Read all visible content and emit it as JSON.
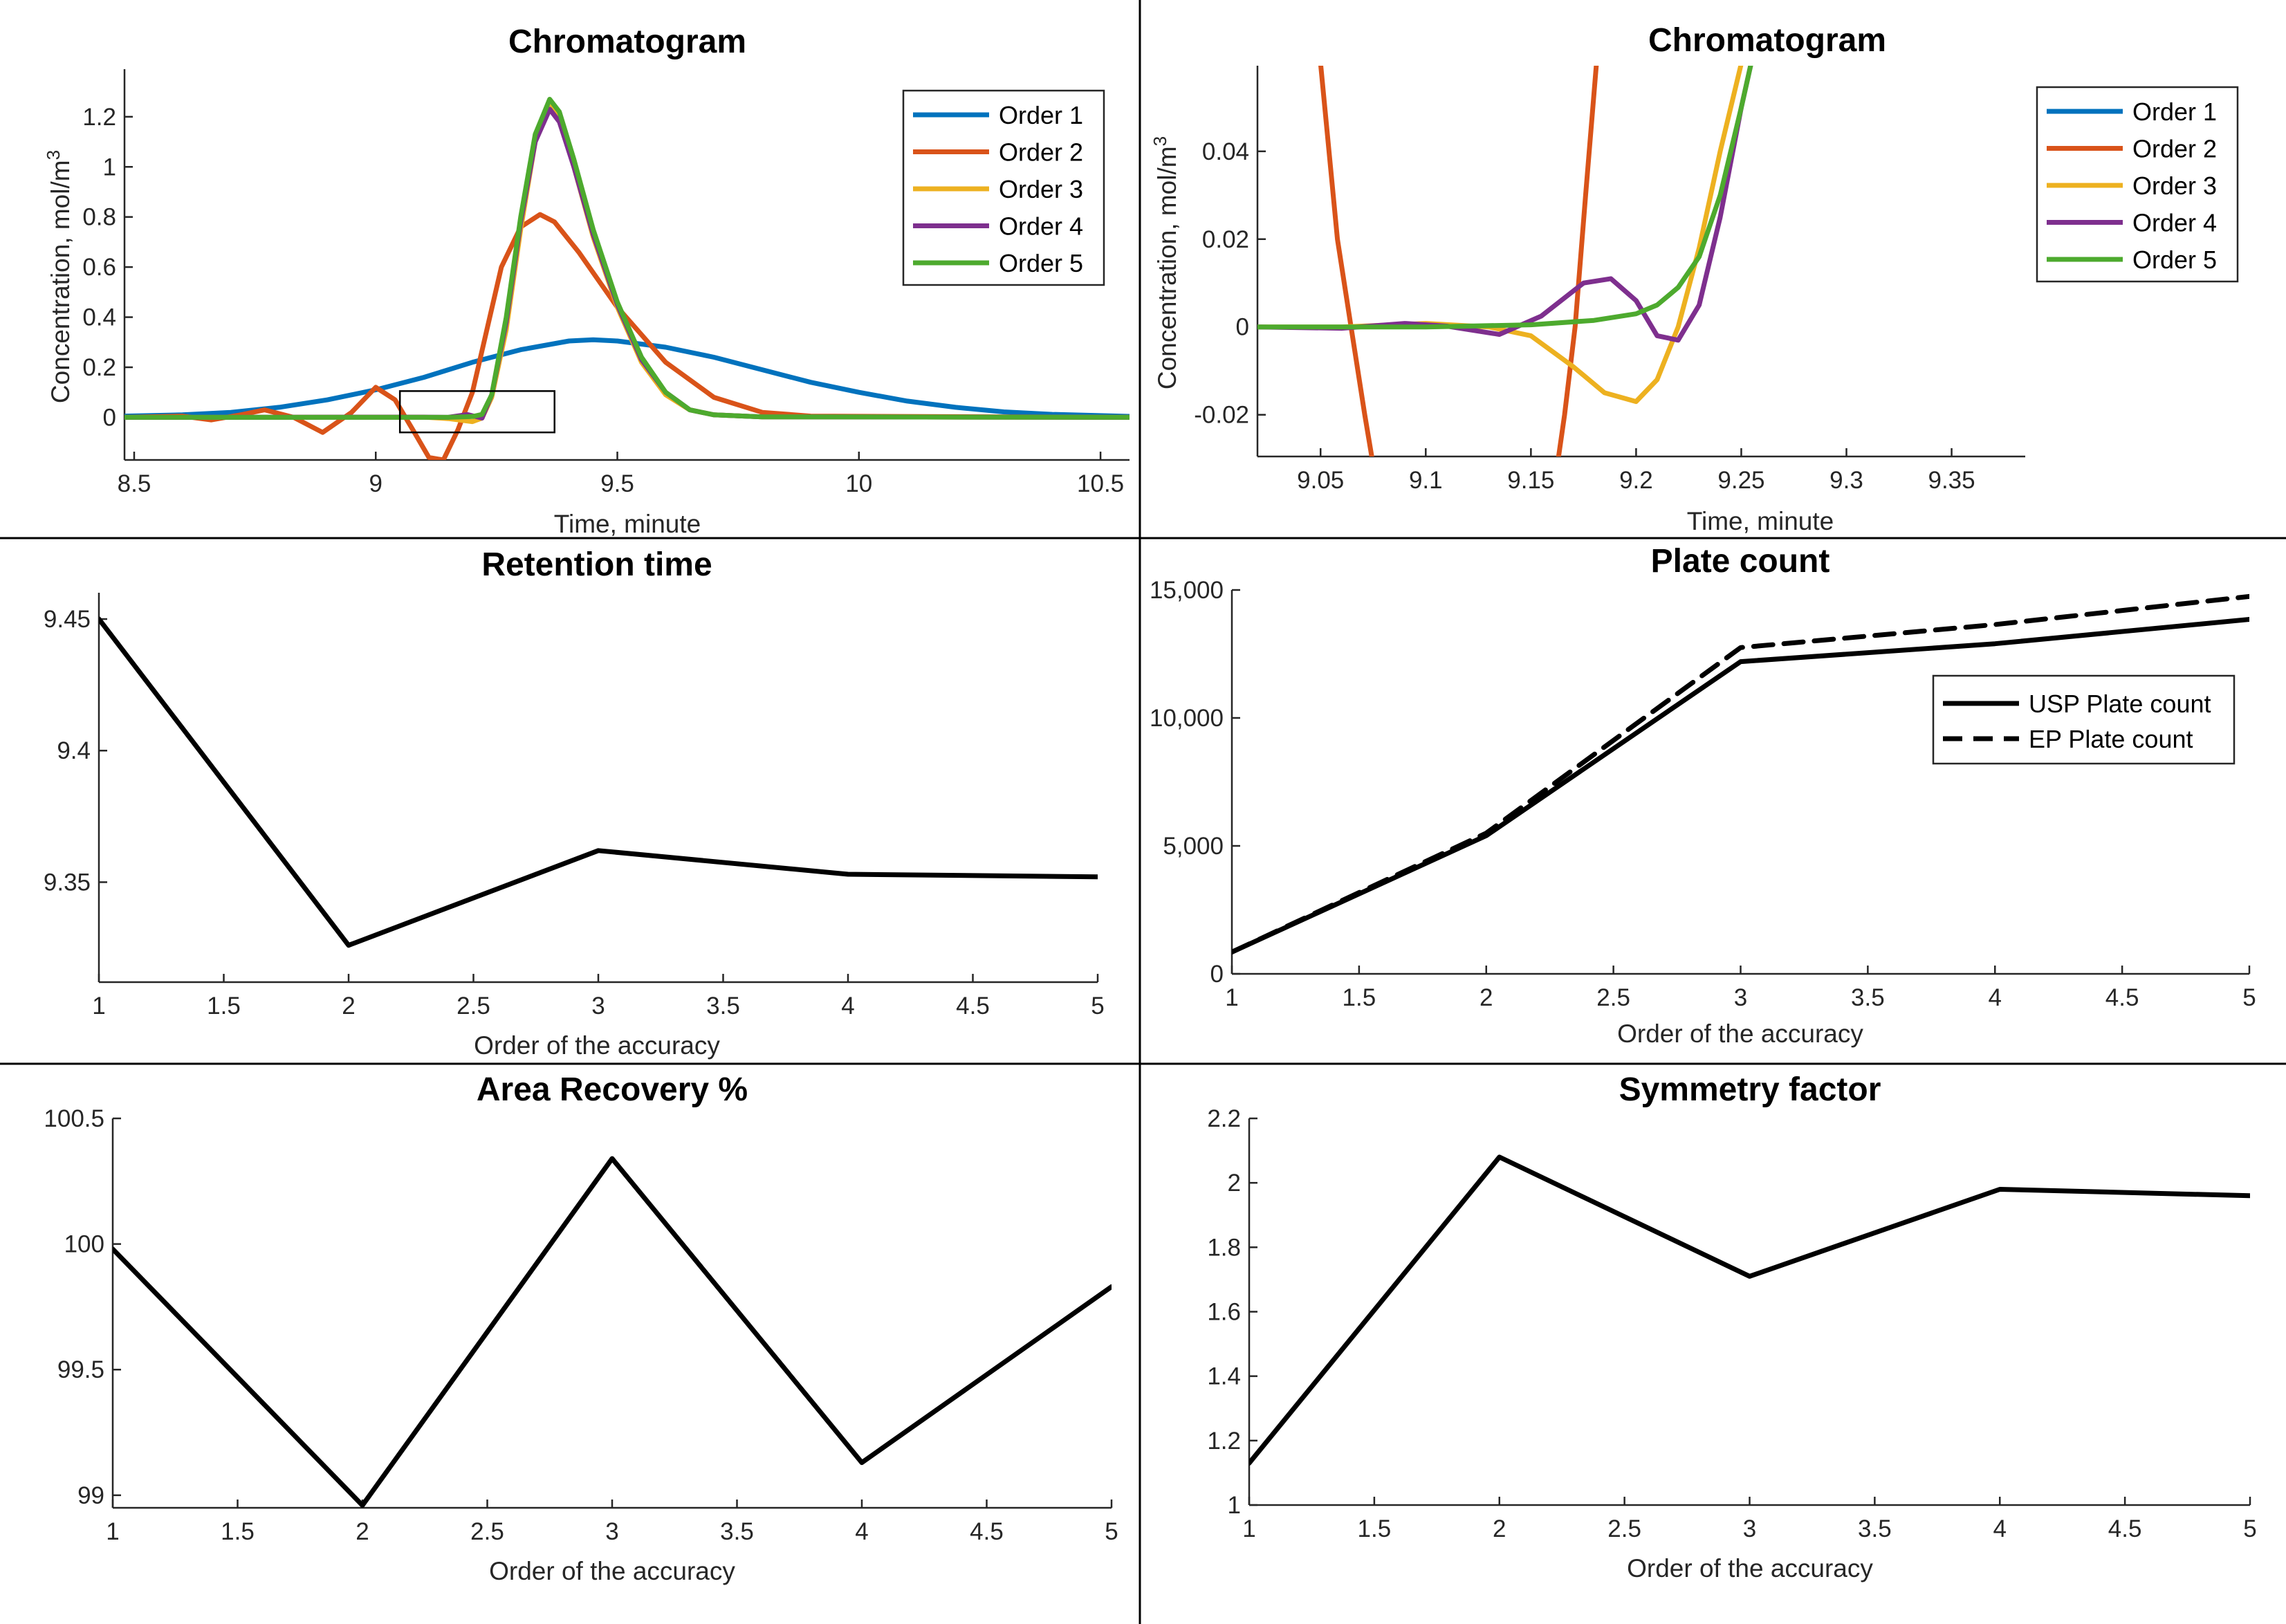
{
  "colors": {
    "order1": "#0072BD",
    "order2": "#D95319",
    "order3": "#EDB120",
    "order4": "#7E2F8E",
    "order5": "#4DAA2E",
    "black": "#000000"
  },
  "chart_data": [
    {
      "id": "chromatogram-main",
      "type": "line",
      "title": "Chromatogram",
      "xlabel": "Time, minute",
      "ylabel": "Concentration, mol/m",
      "ylabel_sup": "3",
      "xlim": [
        8.48,
        10.56
      ],
      "ylim": [
        -0.17,
        1.39
      ],
      "xticks": [
        8.5,
        9,
        9.5,
        10,
        10.5
      ],
      "xtick_labels": [
        "8.5",
        "9",
        "9.5",
        "10",
        "10.5"
      ],
      "yticks": [
        0,
        0.2,
        0.4,
        0.6,
        0.8,
        1,
        1.2
      ],
      "ytick_labels": [
        "0",
        "0.2",
        "0.4",
        "0.6",
        "0.8",
        "1",
        "1.2"
      ],
      "legend_loc": "top-right",
      "zoom_rect": {
        "x": [
          9.05,
          9.37
        ],
        "y": [
          -0.06,
          0.105
        ]
      },
      "series": [
        {
          "name": "Order 1",
          "color_key": "order1",
          "style": "solid",
          "x": [
            8.48,
            8.6,
            8.7,
            8.8,
            8.9,
            9.0,
            9.1,
            9.2,
            9.3,
            9.4,
            9.45,
            9.5,
            9.6,
            9.7,
            9.8,
            9.9,
            10.0,
            10.1,
            10.2,
            10.3,
            10.4,
            10.56
          ],
          "y": [
            0.005,
            0.01,
            0.02,
            0.04,
            0.07,
            0.11,
            0.16,
            0.22,
            0.27,
            0.305,
            0.31,
            0.305,
            0.28,
            0.24,
            0.19,
            0.14,
            0.1,
            0.065,
            0.04,
            0.022,
            0.012,
            0.004
          ]
        },
        {
          "name": "Order 2",
          "color_key": "order2",
          "style": "solid",
          "x": [
            8.48,
            8.6,
            8.66,
            8.72,
            8.77,
            8.83,
            8.89,
            8.95,
            9.0,
            9.04,
            9.08,
            9.11,
            9.14,
            9.17,
            9.2,
            9.23,
            9.26,
            9.3,
            9.34,
            9.37,
            9.42,
            9.5,
            9.6,
            9.7,
            9.8,
            9.9,
            10.56
          ],
          "y": [
            0,
            0.005,
            -0.01,
            0.01,
            0.03,
            0.0,
            -0.06,
            0.02,
            0.12,
            0.07,
            -0.06,
            -0.16,
            -0.17,
            -0.05,
            0.1,
            0.35,
            0.6,
            0.76,
            0.81,
            0.78,
            0.66,
            0.44,
            0.22,
            0.08,
            0.02,
            0.005,
            0
          ]
        },
        {
          "name": "Order 3",
          "color_key": "order3",
          "style": "solid",
          "x": [
            8.48,
            9.1,
            9.15,
            9.2,
            9.22,
            9.24,
            9.27,
            9.3,
            9.33,
            9.36,
            9.38,
            9.41,
            9.45,
            9.5,
            9.55,
            9.6,
            9.65,
            9.7,
            9.8,
            10.56
          ],
          "y": [
            0,
            0.001,
            -0.005,
            -0.017,
            -0.003,
            0.08,
            0.35,
            0.75,
            1.1,
            1.24,
            1.2,
            1.0,
            0.72,
            0.44,
            0.22,
            0.09,
            0.03,
            0.01,
            0.002,
            0
          ]
        },
        {
          "name": "Order 4",
          "color_key": "order4",
          "style": "solid",
          "x": [
            8.48,
            9.1,
            9.15,
            9.19,
            9.22,
            9.24,
            9.27,
            9.3,
            9.33,
            9.36,
            9.38,
            9.41,
            9.45,
            9.5,
            9.55,
            9.6,
            9.65,
            9.7,
            9.8,
            10.56
          ],
          "y": [
            0,
            0.001,
            0.0,
            0.011,
            -0.003,
            0.09,
            0.38,
            0.78,
            1.1,
            1.23,
            1.18,
            1.0,
            0.73,
            0.45,
            0.23,
            0.1,
            0.03,
            0.01,
            0.002,
            0
          ]
        },
        {
          "name": "Order 5",
          "color_key": "order5",
          "style": "solid",
          "x": [
            8.48,
            9.1,
            9.15,
            9.2,
            9.22,
            9.24,
            9.27,
            9.3,
            9.33,
            9.36,
            9.38,
            9.41,
            9.45,
            9.5,
            9.55,
            9.6,
            9.65,
            9.7,
            9.8,
            10.56
          ],
          "y": [
            0,
            0.0,
            0.0,
            0.003,
            0.012,
            0.09,
            0.4,
            0.8,
            1.13,
            1.27,
            1.22,
            1.03,
            0.75,
            0.46,
            0.24,
            0.1,
            0.03,
            0.01,
            0.002,
            0
          ]
        }
      ]
    },
    {
      "id": "chromatogram-zoom",
      "type": "line",
      "title": "Chromatogram",
      "xlabel": "Time, minute",
      "ylabel": "Concentration, mol/m",
      "ylabel_sup": "3",
      "xlim": [
        9.02,
        9.385
      ],
      "ylim": [
        -0.0295,
        0.0595
      ],
      "xticks": [
        9.05,
        9.1,
        9.15,
        9.2,
        9.25,
        9.3,
        9.35
      ],
      "xtick_labels": [
        "9.05",
        "9.1",
        "9.15",
        "9.2",
        "9.25",
        "9.3",
        "9.35"
      ],
      "yticks": [
        -0.02,
        0,
        0.02,
        0.04
      ],
      "ytick_labels": [
        "-0.02",
        "0",
        "0.02",
        "0.04"
      ],
      "legend_loc": "top-right",
      "series": [
        {
          "name": "Order 1",
          "color_key": "order1",
          "style": "solid",
          "x": [],
          "y": []
        },
        {
          "name": "Order 2",
          "color_key": "order2",
          "style": "solid",
          "x": [
            9.049,
            9.058,
            9.0645,
            9.071,
            9.078,
            9.16,
            9.166,
            9.171,
            9.176,
            9.182
          ],
          "y": [
            0.065,
            0.02,
            0.0,
            -0.02,
            -0.04,
            -0.04,
            -0.02,
            0.0,
            0.03,
            0.065
          ]
        },
        {
          "name": "Order 3",
          "color_key": "order3",
          "style": "solid",
          "x": [
            9.02,
            9.06,
            9.1,
            9.13,
            9.15,
            9.17,
            9.185,
            9.2,
            9.21,
            9.22,
            9.23,
            9.24,
            9.25,
            9.255
          ],
          "y": [
            0,
            0.0,
            0.0008,
            0.0,
            -0.002,
            -0.009,
            -0.015,
            -0.017,
            -0.012,
            0.0,
            0.018,
            0.04,
            0.06,
            0.07
          ]
        },
        {
          "name": "Order 4",
          "color_key": "order4",
          "style": "solid",
          "x": [
            9.02,
            9.06,
            9.09,
            9.11,
            9.135,
            9.155,
            9.175,
            9.188,
            9.2,
            9.21,
            9.22,
            9.23,
            9.24,
            9.25,
            9.257
          ],
          "y": [
            0,
            -0.0003,
            0.0008,
            0.0002,
            -0.0017,
            0.0025,
            0.01,
            0.011,
            0.006,
            -0.002,
            -0.003,
            0.005,
            0.025,
            0.05,
            0.065
          ]
        },
        {
          "name": "Order 5",
          "color_key": "order5",
          "style": "solid",
          "x": [
            9.02,
            9.1,
            9.15,
            9.18,
            9.2,
            9.21,
            9.22,
            9.23,
            9.24,
            9.25,
            9.257
          ],
          "y": [
            0,
            0.0,
            0.0005,
            0.0015,
            0.003,
            0.005,
            0.009,
            0.016,
            0.03,
            0.05,
            0.065
          ]
        }
      ]
    },
    {
      "id": "retention-time",
      "type": "line",
      "title": "Retention time",
      "xlabel": "Order of the accuracy",
      "ylabel": "",
      "xlim": [
        1,
        5
      ],
      "ylim": [
        9.312,
        9.46
      ],
      "xticks": [
        1,
        1.5,
        2,
        2.5,
        3,
        3.5,
        4,
        4.5,
        5
      ],
      "xtick_labels": [
        "1",
        "1.5",
        "2",
        "2.5",
        "3",
        "3.5",
        "4",
        "4.5",
        "5"
      ],
      "yticks": [
        9.35,
        9.4,
        9.45
      ],
      "ytick_labels": [
        "9.35",
        "9.4",
        "9.45"
      ],
      "series": [
        {
          "name": "Retention time",
          "color_key": "black",
          "style": "solid",
          "x": [
            1,
            2,
            3,
            4,
            5
          ],
          "y": [
            9.45,
            9.326,
            9.362,
            9.353,
            9.352
          ]
        }
      ]
    },
    {
      "id": "plate-count",
      "type": "line",
      "title": "Plate count",
      "xlabel": "Order of the accuracy",
      "ylabel": "",
      "xlim": [
        1,
        5
      ],
      "ylim": [
        0,
        15000
      ],
      "xticks": [
        1,
        1.5,
        2,
        2.5,
        3,
        3.5,
        4,
        4.5,
        5
      ],
      "xtick_labels": [
        "1",
        "1.5",
        "2",
        "2.5",
        "3",
        "3.5",
        "4",
        "4.5",
        "5"
      ],
      "yticks": [
        0,
        5000,
        10000,
        15000
      ],
      "ytick_labels": [
        "0",
        "5,000",
        "10,000",
        "15,000"
      ],
      "legend_loc": "right",
      "series": [
        {
          "name": "USP Plate count",
          "color_key": "black",
          "style": "solid",
          "x": [
            1,
            2,
            3,
            4,
            5
          ],
          "y": [
            850,
            5400,
            12200,
            12900,
            13850
          ]
        },
        {
          "name": "EP Plate count",
          "color_key": "black",
          "style": "dashed",
          "x": [
            1,
            2,
            3,
            4,
            5
          ],
          "y": [
            850,
            5500,
            12750,
            13650,
            14750
          ]
        }
      ]
    },
    {
      "id": "area-recovery",
      "type": "line",
      "title": "Area Recovery %",
      "xlabel": "Order of the accuracy",
      "ylabel": "",
      "xlim": [
        1,
        5
      ],
      "ylim": [
        98.95,
        100.5
      ],
      "xticks": [
        1,
        1.5,
        2,
        2.5,
        3,
        3.5,
        4,
        4.5,
        5
      ],
      "xtick_labels": [
        "1",
        "1.5",
        "2",
        "2.5",
        "3",
        "3.5",
        "4",
        "4.5",
        "5"
      ],
      "yticks": [
        99,
        99.5,
        100,
        100.5
      ],
      "ytick_labels": [
        "99",
        "99.5",
        "100",
        "100.5"
      ],
      "series": [
        {
          "name": "Area Recovery %",
          "color_key": "black",
          "style": "solid",
          "x": [
            1,
            2,
            3,
            4,
            5
          ],
          "y": [
            99.98,
            98.96,
            100.34,
            99.13,
            99.83
          ]
        }
      ]
    },
    {
      "id": "symmetry-factor",
      "type": "line",
      "title": "Symmetry factor",
      "xlabel": "Order of the accuracy",
      "ylabel": "",
      "xlim": [
        1,
        5
      ],
      "ylim": [
        1,
        2.2
      ],
      "xticks": [
        1,
        1.5,
        2,
        2.5,
        3,
        3.5,
        4,
        4.5,
        5
      ],
      "xtick_labels": [
        "1",
        "1.5",
        "2",
        "2.5",
        "3",
        "3.5",
        "4",
        "4.5",
        "5"
      ],
      "yticks": [
        1,
        1.2,
        1.4,
        1.6,
        1.8,
        2,
        2.2
      ],
      "ytick_labels": [
        "1",
        "1.2",
        "1.4",
        "1.6",
        "1.8",
        "2",
        "2.2"
      ],
      "series": [
        {
          "name": "Symmetry factor",
          "color_key": "black",
          "style": "solid",
          "x": [
            1,
            2,
            3,
            4,
            5
          ],
          "y": [
            1.13,
            2.08,
            1.71,
            1.98,
            1.96
          ]
        }
      ]
    }
  ]
}
